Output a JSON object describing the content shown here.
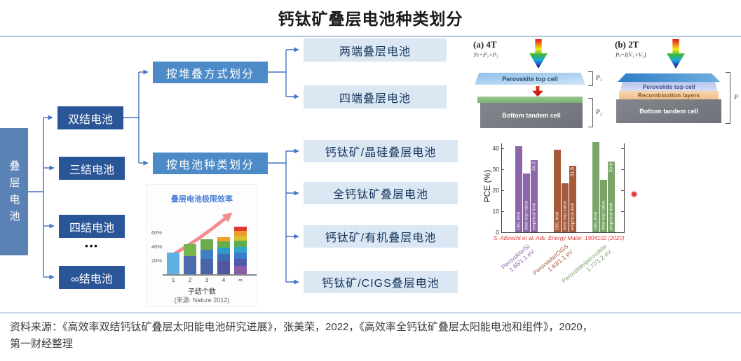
{
  "title": "钙钛矿叠层电池种类划分",
  "source_note": {
    "line1": "资料来源：《高效率双结钙钛矿叠层太阳能电池研究进展》，张美荣，2022，《高效率全钙钛矿叠层太阳能电池和组件》，2020，",
    "line2": "第一财经整理"
  },
  "colors": {
    "connector": "#4472c4",
    "root_box": "#5b82b5",
    "dark_box": "#2a5698",
    "mid_box": "#4d8bc8",
    "light_box": "#dbe7f3",
    "citation_red": "#e03a3a"
  },
  "flowchart": {
    "root": "叠层电池",
    "junction_cells": [
      "双结电池",
      "三结电池",
      "四结电池",
      "∞结电池"
    ],
    "ellipsis": "•••",
    "categories": [
      "按堆叠方式划分",
      "按电池种类划分"
    ],
    "stack_results": [
      "两端叠层电池",
      "四端叠层电池"
    ],
    "type_results": [
      "钙钛矿/晶硅叠层电池",
      "全钙钛矿叠层电池",
      "钙钛矿/有机叠层电池",
      "钙钛矿/CIGS叠层电池"
    ]
  },
  "figure_4t": {
    "label": "(a) 4T",
    "formula": "Pₜ=P₁+P₂",
    "top_cell": "Perovskite top cell",
    "bottom_cell": "Bottom tandem cell",
    "bracket_top": "P₁",
    "bracket_bottom": "P₂"
  },
  "figure_2t": {
    "label": "(b) 2T",
    "formula": "Pₜ=I(V₁+V₂)",
    "top_cell": "Perovskite top cell",
    "middle_layer": "Recombination layers",
    "bottom_cell": "Bottom tandem cell",
    "bracket": "P"
  },
  "chart_data": [
    {
      "id": "tandem_limit_efficiency",
      "type": "bar",
      "stacked": true,
      "title": "叠层电池极限效率",
      "xlabel": "子结个数",
      "source": "(来源: Nature 2012)",
      "categories": [
        "1",
        "2",
        "3",
        "4",
        "∞"
      ],
      "values": [
        31,
        43,
        50,
        53,
        68
      ],
      "yticks": [
        "20%",
        "40%",
        "60%"
      ],
      "ylim": [
        0,
        75
      ],
      "legend_position": "none",
      "grid": false,
      "segments": [
        [
          {
            "v": 31,
            "c": "#5fb0e4"
          }
        ],
        [
          {
            "v": 26,
            "c": "#4a6cae"
          },
          {
            "v": 17,
            "c": "#78b44e"
          }
        ],
        [
          {
            "v": 22,
            "c": "#4a64a8"
          },
          {
            "v": 13,
            "c": "#3f80c4"
          },
          {
            "v": 15,
            "c": "#6cac4c"
          }
        ],
        [
          {
            "v": 19,
            "c": "#4f589c"
          },
          {
            "v": 10,
            "c": "#3b6cb6"
          },
          {
            "v": 9,
            "c": "#2f9ac8"
          },
          {
            "v": 9,
            "c": "#66ae4a"
          },
          {
            "v": 6,
            "c": "#eea22e"
          }
        ],
        [
          {
            "v": 12,
            "c": "#8a5ca6"
          },
          {
            "v": 10,
            "c": "#4a5aa8"
          },
          {
            "v": 9,
            "c": "#3a7cc9"
          },
          {
            "v": 8,
            "c": "#2fa6c9"
          },
          {
            "v": 9,
            "c": "#5cae4a"
          },
          {
            "v": 7,
            "c": "#d8c22e"
          },
          {
            "v": 7,
            "c": "#ee9a2a"
          },
          {
            "v": 6,
            "c": "#e2372e"
          }
        ]
      ]
    },
    {
      "id": "pce_comparison",
      "type": "bar",
      "grouped": true,
      "ylabel": "PCE (%)",
      "yticks": [
        0,
        10,
        20,
        30,
        40
      ],
      "ylim": [
        0,
        45
      ],
      "grid": false,
      "citation": "S. Albrecht et al. Adv. Energy Mater. 1904102 (2020)",
      "groups": [
        {
          "label_line1": "Perovskite/Si",
          "label_line2": "1.65/1.1 eV",
          "color": "#8d65ab",
          "bars": [
            {
              "name": "DBL limit",
              "value": 41
            },
            {
              "name": "best exp value",
              "value": 28
            },
            {
              "name": "empirical limit",
              "value": 34.3,
              "value_label": "34.3"
            }
          ]
        },
        {
          "label_line1": "Perovskite/CIGS",
          "label_line2": "1.63/1.1 eV",
          "color": "#a55a3a",
          "bars": [
            {
              "name": "DBL limit",
              "value": 39.5
            },
            {
              "name": "best exp value",
              "value": 23.3
            },
            {
              "name": "empirical limit",
              "value": 31.8,
              "value_label": "31.8"
            }
          ]
        },
        {
          "label_line1": "Perovskite/perovskite",
          "label_line2": "1.77/1.2 eV",
          "color": "#7aa468",
          "bars": [
            {
              "name": "DBL limit",
              "value": 43
            },
            {
              "name": "best exp value",
              "value": 25
            },
            {
              "name": "empirical limit",
              "value": 33.6,
              "value_label": "33.6"
            }
          ]
        }
      ],
      "marker": {
        "pce": 21
      }
    }
  ]
}
